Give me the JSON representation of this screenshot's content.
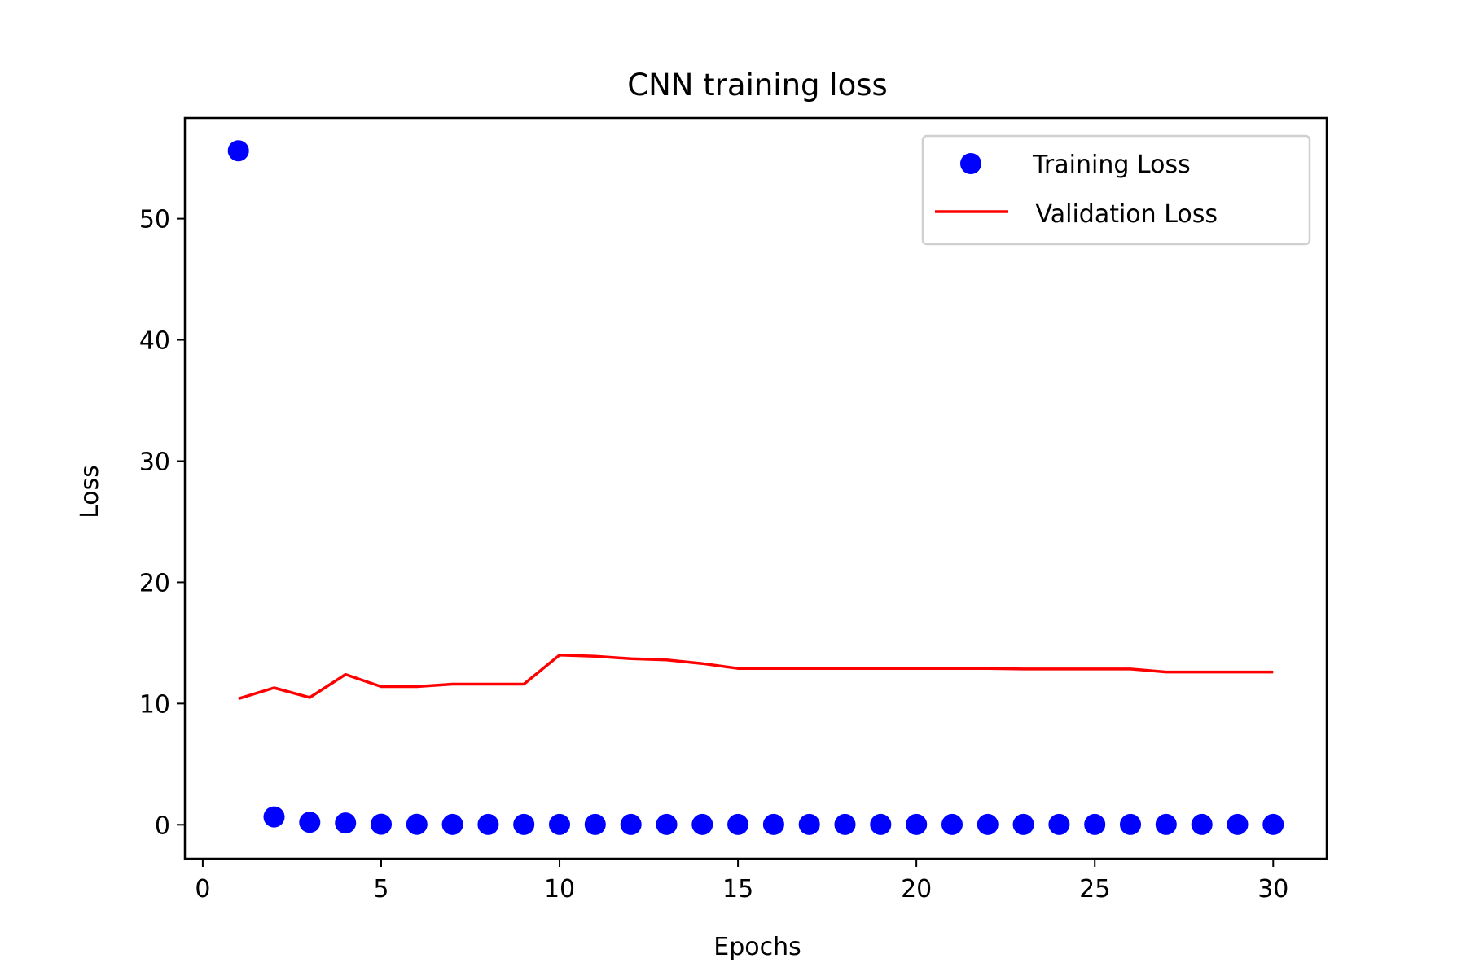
{
  "chart_data": {
    "type": "line",
    "title": "CNN training loss",
    "xlabel": "Epochs",
    "ylabel": "Loss",
    "xlim": [
      -0.5,
      31.5
    ],
    "ylim": [
      -2.8,
      58.3
    ],
    "xticks": [
      0,
      5,
      10,
      15,
      20,
      25,
      30
    ],
    "yticks": [
      0,
      10,
      20,
      30,
      40,
      50
    ],
    "grid": false,
    "legend_position": "top-right",
    "x": [
      1,
      2,
      3,
      4,
      5,
      6,
      7,
      8,
      9,
      10,
      11,
      12,
      13,
      14,
      15,
      16,
      17,
      18,
      19,
      20,
      21,
      22,
      23,
      24,
      25,
      26,
      27,
      28,
      29,
      30
    ],
    "series": [
      {
        "name": "Training Loss",
        "style": "markers",
        "color": "#0000ff",
        "values": [
          55.6,
          0.65,
          0.2,
          0.15,
          0.05,
          0.04,
          0.03,
          0.03,
          0.03,
          0.03,
          0.03,
          0.03,
          0.03,
          0.03,
          0.03,
          0.03,
          0.03,
          0.03,
          0.03,
          0.03,
          0.03,
          0.03,
          0.03,
          0.03,
          0.03,
          0.03,
          0.03,
          0.03,
          0.03,
          0.03
        ]
      },
      {
        "name": " Validation Loss",
        "style": "line",
        "color": "#ff0000",
        "values": [
          10.4,
          11.3,
          10.5,
          12.4,
          11.4,
          11.4,
          11.6,
          11.6,
          11.6,
          14.0,
          13.9,
          13.7,
          13.6,
          13.3,
          12.9,
          12.9,
          12.9,
          12.9,
          12.9,
          12.9,
          12.9,
          12.9,
          12.85,
          12.85,
          12.85,
          12.85,
          12.6,
          12.6,
          12.6,
          12.6
        ]
      }
    ]
  }
}
